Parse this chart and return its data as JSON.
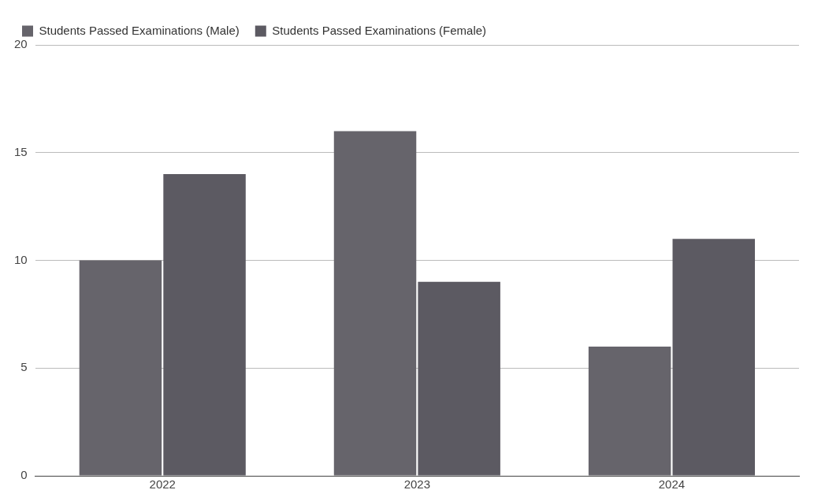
{
  "chart_data": {
    "type": "bar",
    "categories": [
      "2022",
      "2023",
      "2024"
    ],
    "series": [
      {
        "name": "Students Passed Examinations (Male)",
        "color": "#66646b",
        "values": [
          10,
          16,
          6
        ]
      },
      {
        "name": "Students Passed Examinations (Female)",
        "color": "#5c5a62",
        "values": [
          14,
          9,
          11
        ]
      }
    ],
    "ylim": [
      0,
      20
    ],
    "yticks": [
      0,
      5,
      10,
      15,
      20
    ],
    "grid": "y",
    "legend": "top left"
  }
}
